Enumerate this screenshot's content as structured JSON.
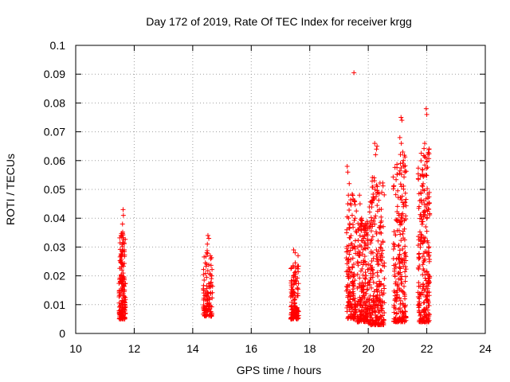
{
  "chart_data": {
    "type": "scatter",
    "title": "Day 172 of 2019, Rate Of TEC Index for receiver krgg",
    "xlabel": "GPS time / hours",
    "ylabel": "ROTI / TECUs",
    "xlim": [
      10,
      24
    ],
    "ylim": [
      0,
      0.1
    ],
    "xticks": [
      10,
      12,
      14,
      16,
      18,
      20,
      22,
      24
    ],
    "xtick_labels": [
      "10",
      "12",
      "14",
      "16",
      "18",
      "20",
      "22",
      "24"
    ],
    "yticks": [
      0,
      0.01,
      0.02,
      0.03,
      0.04,
      0.05,
      0.06,
      0.07,
      0.08,
      0.09,
      0.1
    ],
    "ytick_labels": [
      "0",
      "0.01",
      "0.02",
      "0.03",
      "0.04",
      "0.05",
      "0.06",
      "0.07",
      "0.08",
      "0.09",
      "0.1"
    ],
    "grid": true,
    "marker": "+",
    "color": "#ff0000",
    "clusters": [
      {
        "x_start": 11.48,
        "x_end": 11.7,
        "y_min": 0.005,
        "y_max": 0.043,
        "n": 170,
        "extras": [
          [
            11.62,
            0.043
          ],
          [
            11.63,
            0.041
          ],
          [
            11.6,
            0.038
          ],
          [
            11.55,
            0.034
          ]
        ]
      },
      {
        "x_start": 14.35,
        "x_end": 14.68,
        "y_min": 0.006,
        "y_max": 0.034,
        "n": 110,
        "extras": [
          [
            14.52,
            0.034
          ],
          [
            14.55,
            0.033
          ],
          [
            14.5,
            0.031
          ],
          [
            14.65,
            0.02
          ]
        ]
      },
      {
        "x_start": 17.35,
        "x_end": 17.62,
        "y_min": 0.005,
        "y_max": 0.029,
        "n": 130,
        "extras": [
          [
            17.45,
            0.029
          ],
          [
            17.5,
            0.028
          ],
          [
            17.6,
            0.027
          ]
        ]
      },
      {
        "x_start": 19.25,
        "x_end": 19.6,
        "y_min": 0.005,
        "y_max": 0.058,
        "n": 150,
        "extras": [
          [
            19.28,
            0.058
          ],
          [
            19.3,
            0.056
          ],
          [
            19.35,
            0.052
          ],
          [
            19.32,
            0.048
          ],
          [
            19.45,
            0.041
          ],
          [
            19.55,
            0.04
          ],
          [
            19.6,
            0.035
          ],
          [
            19.3,
            0.045
          ]
        ]
      },
      {
        "x_start": 19.62,
        "x_end": 20.0,
        "y_min": 0.004,
        "y_max": 0.048,
        "n": 200,
        "extras": [
          [
            19.7,
            0.048
          ],
          [
            19.65,
            0.036
          ],
          [
            19.72,
            0.045
          ],
          [
            19.92,
            0.037
          ],
          [
            19.95,
            0.035
          ],
          [
            19.85,
            0.033
          ],
          [
            19.75,
            0.036
          ]
        ]
      },
      {
        "x_start": 19.5,
        "x_end": 19.5,
        "y_min": 0.0905,
        "y_max": 0.0905,
        "n": 0,
        "extras": [
          [
            19.51,
            0.0905
          ]
        ]
      },
      {
        "x_start": 20.02,
        "x_end": 20.55,
        "y_min": 0.003,
        "y_max": 0.066,
        "n": 260,
        "extras": [
          [
            20.22,
            0.066
          ],
          [
            20.28,
            0.064
          ],
          [
            20.3,
            0.065
          ],
          [
            20.25,
            0.062
          ],
          [
            20.2,
            0.054
          ],
          [
            20.23,
            0.05
          ],
          [
            20.18,
            0.047
          ],
          [
            20.33,
            0.049
          ],
          [
            20.45,
            0.039
          ],
          [
            20.4,
            0.035
          ],
          [
            20.38,
            0.043
          ],
          [
            20.5,
            0.032
          ]
        ]
      },
      {
        "x_start": 20.85,
        "x_end": 21.3,
        "y_min": 0.004,
        "y_max": 0.075,
        "n": 230,
        "extras": [
          [
            21.12,
            0.075
          ],
          [
            21.15,
            0.074
          ],
          [
            21.18,
            0.063
          ],
          [
            21.1,
            0.059
          ],
          [
            21.14,
            0.051
          ],
          [
            21.2,
            0.044
          ],
          [
            21.05,
            0.041
          ],
          [
            21.08,
            0.068
          ],
          [
            21.13,
            0.066
          ],
          [
            21.2,
            0.06
          ]
        ]
      },
      {
        "x_start": 21.7,
        "x_end": 22.1,
        "y_min": 0.004,
        "y_max": 0.078,
        "n": 240,
        "extras": [
          [
            21.98,
            0.078
          ],
          [
            22.0,
            0.076
          ],
          [
            21.93,
            0.066
          ],
          [
            21.96,
            0.061
          ],
          [
            21.97,
            0.055
          ],
          [
            21.9,
            0.046
          ],
          [
            22.02,
            0.045
          ],
          [
            22.0,
            0.04
          ]
        ]
      }
    ]
  }
}
